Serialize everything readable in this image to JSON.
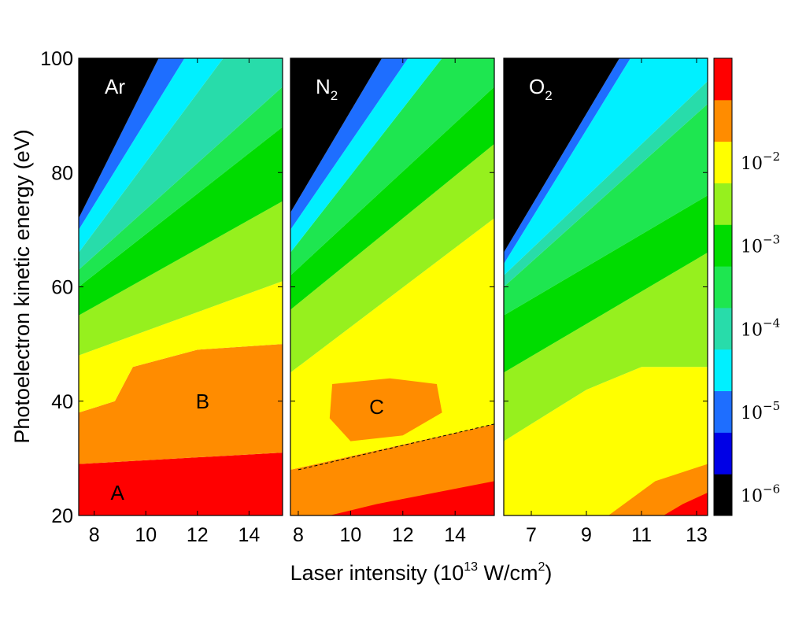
{
  "chart_data": {
    "type": "heatmap",
    "title": "",
    "xlabel": "Laser intensity (10",
    "xlabel_sup1": "13",
    "xlabel_mid": " W/cm",
    "xlabel_sup2": "2",
    "xlabel_end": ")",
    "ylabel": "Photoelectron kinetic energy (eV)",
    "ylim": [
      20,
      100
    ],
    "yticks": [
      "20",
      "40",
      "60",
      "80",
      "100"
    ],
    "colorbar": {
      "scale": "log",
      "colors": [
        "#000000",
        "#0000e6",
        "#1e6eff",
        "#00f0ff",
        "#28dcaa",
        "#1ee650",
        "#00dc00",
        "#96f01e",
        "#ffff00",
        "#ff8c00",
        "#ff0000"
      ],
      "labels": [
        {
          "base": "10",
          "exp": "−6"
        },
        {
          "base": "10",
          "exp": "−5"
        },
        {
          "base": "10",
          "exp": "−4"
        },
        {
          "base": "10",
          "exp": "−3"
        },
        {
          "base": "10",
          "exp": "−2"
        }
      ]
    },
    "panels": [
      {
        "name": "Ar",
        "sub": "",
        "xlim": [
          7.4,
          15.3
        ],
        "xticks": [
          {
            "v": 8,
            "t": "8"
          },
          {
            "v": 10,
            "t": "10"
          },
          {
            "v": 12,
            "t": "12"
          },
          {
            "v": 14,
            "t": "14"
          }
        ],
        "bands": [
          {
            "c": 10,
            "pts": [
              [
                7.4,
                20
              ],
              [
                15.3,
                20
              ],
              [
                15.3,
                31
              ],
              [
                7.4,
                29
              ]
            ]
          },
          {
            "c": 9,
            "pts": [
              [
                7.4,
                29
              ],
              [
                15.3,
                31
              ],
              [
                15.3,
                50
              ],
              [
                12,
                49
              ],
              [
                9.5,
                46
              ],
              [
                8.8,
                40
              ],
              [
                7.4,
                38
              ],
              [
                7.4,
                35
              ]
            ]
          },
          {
            "c": 8,
            "pts": [
              [
                7.4,
                35
              ],
              [
                7.4,
                38
              ],
              [
                8.8,
                40
              ],
              [
                9.5,
                46
              ],
              [
                12,
                49
              ],
              [
                15.3,
                50
              ],
              [
                15.3,
                61
              ],
              [
                7.4,
                48
              ]
            ]
          },
          {
            "c": 7,
            "pts": [
              [
                7.4,
                48
              ],
              [
                15.3,
                61
              ],
              [
                15.3,
                75
              ],
              [
                7.4,
                55
              ]
            ]
          },
          {
            "c": 6,
            "pts": [
              [
                7.4,
                55
              ],
              [
                15.3,
                75
              ],
              [
                15.3,
                88
              ],
              [
                7.4,
                60
              ]
            ]
          },
          {
            "c": 5,
            "pts": [
              [
                7.4,
                60
              ],
              [
                15.3,
                88
              ],
              [
                15.3,
                95
              ],
              [
                7.4,
                63
              ]
            ]
          },
          {
            "c": 4,
            "pts": [
              [
                7.4,
                63
              ],
              [
                15.3,
                95
              ],
              [
                15.3,
                100
              ],
              [
                13,
                100
              ],
              [
                7.4,
                66
              ]
            ]
          },
          {
            "c": 3,
            "pts": [
              [
                7.4,
                66
              ],
              [
                13,
                100
              ],
              [
                11.5,
                100
              ],
              [
                7.4,
                70
              ]
            ]
          },
          {
            "c": 2,
            "pts": [
              [
                7.4,
                70
              ],
              [
                11.5,
                100
              ],
              [
                10.5,
                100
              ],
              [
                7.4,
                72
              ]
            ]
          },
          {
            "c": 0,
            "pts": [
              [
                7.4,
                72
              ],
              [
                10.5,
                100
              ],
              [
                7.4,
                100
              ]
            ]
          }
        ],
        "labels": [
          {
            "t": "A",
            "x": 8.9,
            "y": 24
          },
          {
            "t": "B",
            "x": 12.2,
            "y": 40
          }
        ]
      },
      {
        "name": "N",
        "sub": "2",
        "xlim": [
          7.7,
          15.5
        ],
        "xticks": [
          {
            "v": 8,
            "t": "8"
          },
          {
            "v": 10,
            "t": "10"
          },
          {
            "v": 12,
            "t": "12"
          },
          {
            "v": 14,
            "t": "14"
          }
        ],
        "bands": [
          {
            "c": 9,
            "pts": [
              [
                7.7,
                20
              ],
              [
                15.5,
                20
              ],
              [
                15.5,
                36
              ],
              [
                7.7,
                28
              ]
            ]
          },
          {
            "c": 10,
            "pts": [
              [
                9.2,
                20
              ],
              [
                15.5,
                20
              ],
              [
                15.5,
                26
              ],
              [
                11,
                22
              ]
            ]
          },
          {
            "c": 8,
            "pts": [
              [
                7.7,
                28
              ],
              [
                15.5,
                36
              ],
              [
                15.5,
                72
              ],
              [
                7.7,
                45
              ]
            ]
          },
          {
            "c": 9,
            "pts": [
              [
                9.3,
                43
              ],
              [
                11.5,
                44
              ],
              [
                13.3,
                43
              ],
              [
                13.5,
                38
              ],
              [
                12,
                34
              ],
              [
                10,
                33
              ],
              [
                9.2,
                37
              ]
            ]
          },
          {
            "c": 7,
            "pts": [
              [
                7.7,
                45
              ],
              [
                15.5,
                72
              ],
              [
                15.5,
                85
              ],
              [
                7.7,
                56
              ]
            ]
          },
          {
            "c": 6,
            "pts": [
              [
                7.7,
                56
              ],
              [
                15.5,
                85
              ],
              [
                15.5,
                95
              ],
              [
                7.7,
                62
              ]
            ]
          },
          {
            "c": 5,
            "pts": [
              [
                7.7,
                62
              ],
              [
                15.5,
                95
              ],
              [
                15.5,
                100
              ],
              [
                13.5,
                100
              ],
              [
                7.7,
                66
              ]
            ]
          },
          {
            "c": 3,
            "pts": [
              [
                7.7,
                66
              ],
              [
                13.5,
                100
              ],
              [
                12.2,
                100
              ],
              [
                7.7,
                70
              ]
            ]
          },
          {
            "c": 2,
            "pts": [
              [
                7.7,
                70
              ],
              [
                12.2,
                100
              ],
              [
                11.2,
                100
              ],
              [
                7.7,
                73
              ]
            ]
          },
          {
            "c": 0,
            "pts": [
              [
                7.7,
                73
              ],
              [
                11.2,
                100
              ],
              [
                7.7,
                100
              ]
            ]
          }
        ],
        "dashed": [
          [
            8.0,
            28
          ],
          [
            15.5,
            36
          ]
        ],
        "labels": [
          {
            "t": "C",
            "x": 11.0,
            "y": 39
          }
        ]
      },
      {
        "name": "O",
        "sub": "2",
        "xlim": [
          6.0,
          13.4
        ],
        "xticks": [
          {
            "v": 7,
            "t": "7"
          },
          {
            "v": 9,
            "t": "9"
          },
          {
            "v": 11,
            "t": "11"
          },
          {
            "v": 13,
            "t": "13"
          }
        ],
        "bands": [
          {
            "c": 8,
            "pts": [
              [
                6.0,
                20
              ],
              [
                13.4,
                20
              ],
              [
                13.4,
                46
              ],
              [
                11,
                46
              ],
              [
                9,
                42
              ],
              [
                7,
                36
              ],
              [
                6.0,
                33
              ]
            ]
          },
          {
            "c": 9,
            "pts": [
              [
                9.8,
                20
              ],
              [
                13.4,
                20
              ],
              [
                13.4,
                29
              ],
              [
                11.5,
                26
              ]
            ]
          },
          {
            "c": 10,
            "pts": [
              [
                11.8,
                20
              ],
              [
                13.4,
                20
              ],
              [
                13.4,
                24
              ],
              [
                12.5,
                22
              ]
            ]
          },
          {
            "c": 7,
            "pts": [
              [
                6.0,
                33
              ],
              [
                7,
                36
              ],
              [
                9,
                42
              ],
              [
                11,
                46
              ],
              [
                13.4,
                46
              ],
              [
                13.4,
                66
              ],
              [
                6.0,
                45
              ]
            ]
          },
          {
            "c": 6,
            "pts": [
              [
                6.0,
                45
              ],
              [
                13.4,
                66
              ],
              [
                13.4,
                76
              ],
              [
                6.0,
                55
              ]
            ]
          },
          {
            "c": 5,
            "pts": [
              [
                6.0,
                55
              ],
              [
                13.4,
                76
              ],
              [
                13.4,
                92
              ],
              [
                6.0,
                60
              ]
            ]
          },
          {
            "c": 4,
            "pts": [
              [
                6.0,
                60
              ],
              [
                13.4,
                92
              ],
              [
                13.4,
                96
              ],
              [
                6.0,
                62
              ]
            ]
          },
          {
            "c": 3,
            "pts": [
              [
                6.0,
                62
              ],
              [
                13.4,
                96
              ],
              [
                13.4,
                100
              ],
              [
                10.6,
                100
              ],
              [
                6.0,
                64
              ]
            ]
          },
          {
            "c": 2,
            "pts": [
              [
                6.0,
                64
              ],
              [
                10.6,
                100
              ],
              [
                10.2,
                100
              ],
              [
                6.0,
                66
              ]
            ]
          },
          {
            "c": 0,
            "pts": [
              [
                6.0,
                66
              ],
              [
                10.2,
                100
              ],
              [
                6.0,
                100
              ]
            ]
          }
        ],
        "labels": []
      }
    ]
  }
}
